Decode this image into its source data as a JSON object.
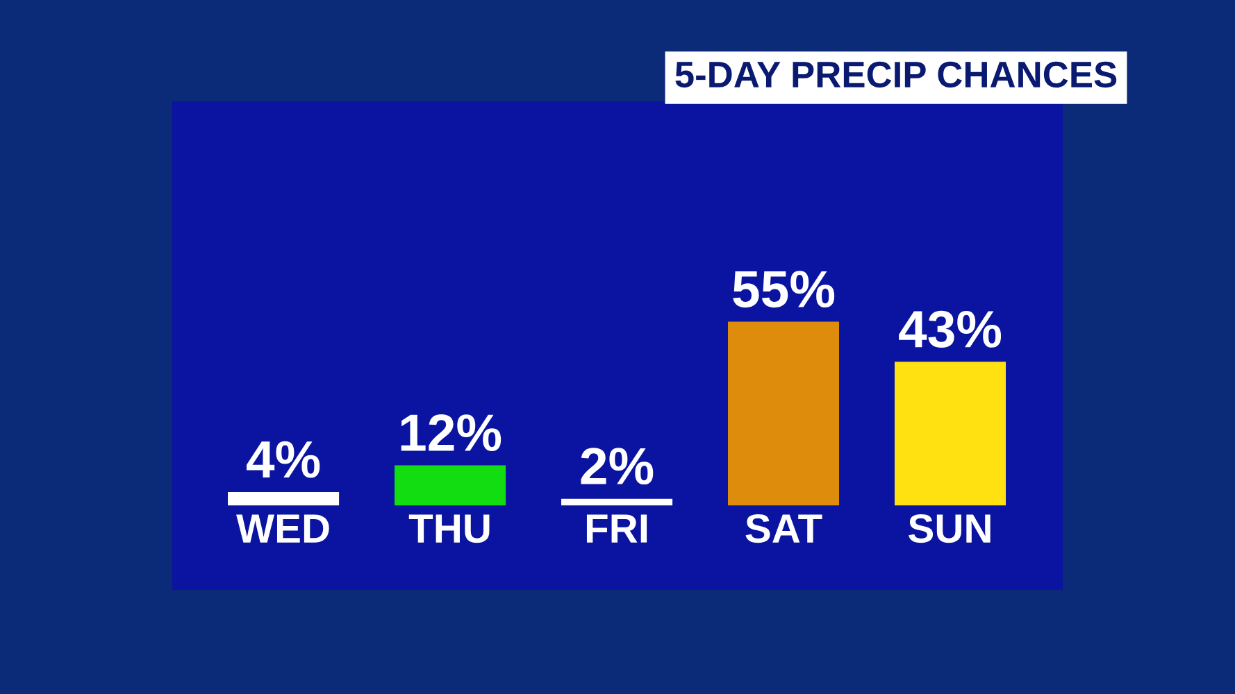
{
  "chart_data": {
    "type": "bar",
    "title": "5-DAY PRECIP CHANCES",
    "categories": [
      "WED",
      "THU",
      "FRI",
      "SAT",
      "SUN"
    ],
    "values": [
      4,
      12,
      2,
      55,
      43
    ],
    "colors": [
      "#ffffff",
      "#11dd11",
      "#ffffff",
      "#dd8c0c",
      "#ffe010"
    ],
    "value_labels": [
      "4%",
      "12%",
      "2%",
      "55%",
      "43%"
    ]
  }
}
